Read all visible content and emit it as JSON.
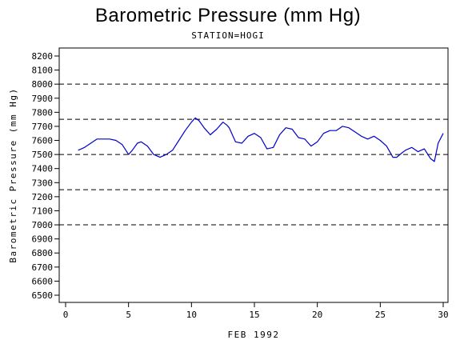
{
  "title": "Barometric Pressure (mm Hg)",
  "subtitle": "STATION=HOGI",
  "chart_data": {
    "type": "line",
    "xlabel": "FEB 1992",
    "ylabel": "Barometric Pressure (mm Hg)",
    "xlim": [
      0,
      30
    ],
    "ylim": [
      6500,
      8200
    ],
    "x_ticks": [
      0,
      5,
      10,
      15,
      20,
      25,
      30
    ],
    "x_tick_labels": [
      "0",
      "5",
      "10",
      "15",
      "20",
      "25",
      "30"
    ],
    "y_ticks": [
      6500,
      6600,
      6700,
      6800,
      6900,
      7000,
      7100,
      7200,
      7300,
      7400,
      7500,
      7600,
      7700,
      7800,
      7900,
      8000,
      8100,
      8200
    ],
    "y_tick_labels": [
      "6500",
      "6600",
      "6700",
      "6800",
      "6900",
      "7000",
      "7100",
      "7200",
      "7300",
      "7400",
      "7500",
      "7600",
      "7700",
      "7800",
      "7900",
      "8000",
      "8100",
      "8200"
    ],
    "reference_lines": [
      7000,
      7250,
      7500,
      7750,
      8000
    ],
    "line_color": "#0000cc",
    "grid": false,
    "series": [
      {
        "x": [
          1.0,
          1.5,
          2.0,
          2.5,
          3.0,
          3.5,
          4.0,
          4.5,
          5.0,
          5.3,
          5.7,
          6.0,
          6.5,
          7.0,
          7.5,
          8.0,
          8.5,
          9.0,
          9.5,
          10.0,
          10.3,
          10.6,
          11.0,
          11.5,
          12.0,
          12.5,
          12.8,
          13.0,
          13.5,
          14.0,
          14.5,
          15.0,
          15.5,
          16.0,
          16.5,
          17.0,
          17.5,
          18.0,
          18.5,
          19.0,
          19.5,
          20.0,
          20.5,
          21.0,
          21.5,
          22.0,
          22.5,
          23.0,
          23.5,
          24.0,
          24.5,
          25.0,
          25.5,
          26.0,
          26.3,
          26.7,
          27.0,
          27.5,
          28.0,
          28.5,
          29.0,
          29.3,
          29.6,
          30.0
        ],
        "y": [
          7530,
          7550,
          7580,
          7610,
          7610,
          7610,
          7600,
          7570,
          7500,
          7530,
          7580,
          7590,
          7560,
          7500,
          7480,
          7500,
          7530,
          7600,
          7670,
          7730,
          7760,
          7740,
          7690,
          7640,
          7680,
          7730,
          7710,
          7690,
          7590,
          7580,
          7630,
          7650,
          7620,
          7540,
          7550,
          7640,
          7690,
          7680,
          7620,
          7610,
          7560,
          7590,
          7650,
          7670,
          7670,
          7700,
          7690,
          7660,
          7630,
          7610,
          7630,
          7600,
          7560,
          7480,
          7480,
          7510,
          7530,
          7550,
          7520,
          7540,
          7470,
          7450,
          7580,
          7650
        ]
      }
    ]
  }
}
